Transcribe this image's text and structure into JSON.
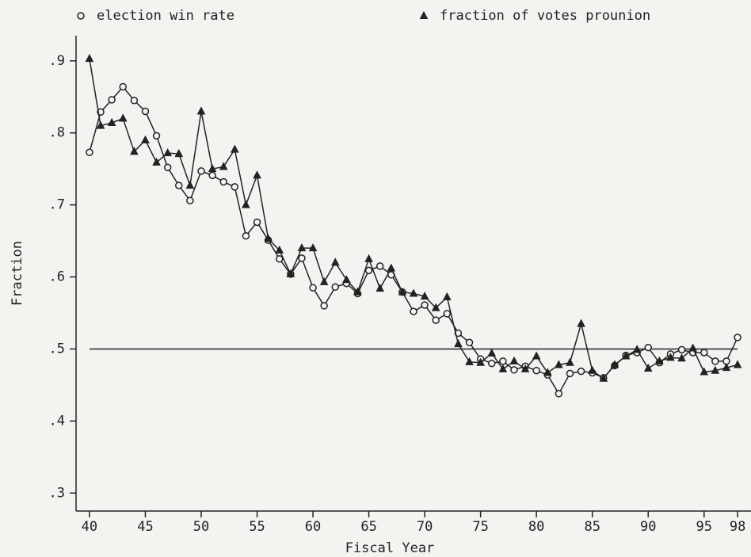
{
  "chart_data": {
    "type": "line",
    "xlabel": "Fiscal Year",
    "ylabel": "Fraction",
    "x": [
      40,
      41,
      42,
      43,
      44,
      45,
      46,
      47,
      48,
      49,
      50,
      51,
      52,
      53,
      54,
      55,
      56,
      57,
      58,
      59,
      60,
      61,
      62,
      63,
      64,
      65,
      66,
      67,
      68,
      69,
      70,
      71,
      72,
      73,
      74,
      75,
      76,
      77,
      78,
      79,
      80,
      81,
      82,
      83,
      84,
      85,
      86,
      87,
      88,
      89,
      90,
      91,
      92,
      93,
      94,
      95,
      96,
      97,
      98
    ],
    "series": [
      {
        "name": "election win rate",
        "color": "#222222",
        "marker": "circle",
        "values": [
          0.773,
          0.829,
          0.846,
          0.864,
          0.845,
          0.83,
          0.796,
          0.752,
          0.727,
          0.706,
          0.747,
          0.741,
          0.732,
          0.725,
          0.657,
          0.676,
          0.651,
          0.625,
          0.604,
          0.626,
          0.585,
          0.56,
          0.586,
          0.591,
          0.577,
          0.609,
          0.615,
          0.603,
          0.579,
          0.552,
          0.561,
          0.54,
          0.549,
          0.522,
          0.509,
          0.486,
          0.48,
          0.483,
          0.471,
          0.476,
          0.47,
          0.464,
          0.438,
          0.466,
          0.469,
          0.467,
          0.46,
          0.477,
          0.491,
          0.495,
          0.502,
          0.481,
          0.493,
          0.499,
          0.495,
          0.495,
          0.483,
          0.483,
          0.516
        ]
      },
      {
        "name": "fraction of votes prounion",
        "color": "#222222",
        "marker": "triangle",
        "values": [
          0.903,
          0.81,
          0.814,
          0.82,
          0.774,
          0.79,
          0.759,
          0.772,
          0.771,
          0.727,
          0.83,
          0.75,
          0.753,
          0.777,
          0.7,
          0.741,
          0.653,
          0.637,
          0.604,
          0.64,
          0.64,
          0.593,
          0.62,
          0.596,
          0.579,
          0.625,
          0.584,
          0.612,
          0.579,
          0.577,
          0.573,
          0.557,
          0.572,
          0.507,
          0.482,
          0.481,
          0.494,
          0.472,
          0.483,
          0.472,
          0.49,
          0.467,
          0.478,
          0.481,
          0.535,
          0.47,
          0.459,
          0.478,
          0.49,
          0.499,
          0.473,
          0.483,
          0.488,
          0.487,
          0.501,
          0.468,
          0.47,
          0.474,
          0.478
        ]
      }
    ],
    "hline": 0.5,
    "xlim": [
      38.8,
      99.2
    ],
    "ylim": [
      0.275,
      0.935
    ],
    "xticks": [
      40,
      45,
      50,
      55,
      60,
      65,
      70,
      75,
      80,
      85,
      90,
      95,
      98
    ],
    "yticks": [
      {
        "value": 0.3,
        "label": ".3"
      },
      {
        "value": 0.4,
        "label": ".4"
      },
      {
        "value": 0.5,
        "label": ".5"
      },
      {
        "value": 0.6,
        "label": ".6"
      },
      {
        "value": 0.7,
        "label": ".7"
      },
      {
        "value": 0.8,
        "label": ".8"
      },
      {
        "value": 0.9,
        "label": ".9"
      }
    ],
    "grid": false
  }
}
